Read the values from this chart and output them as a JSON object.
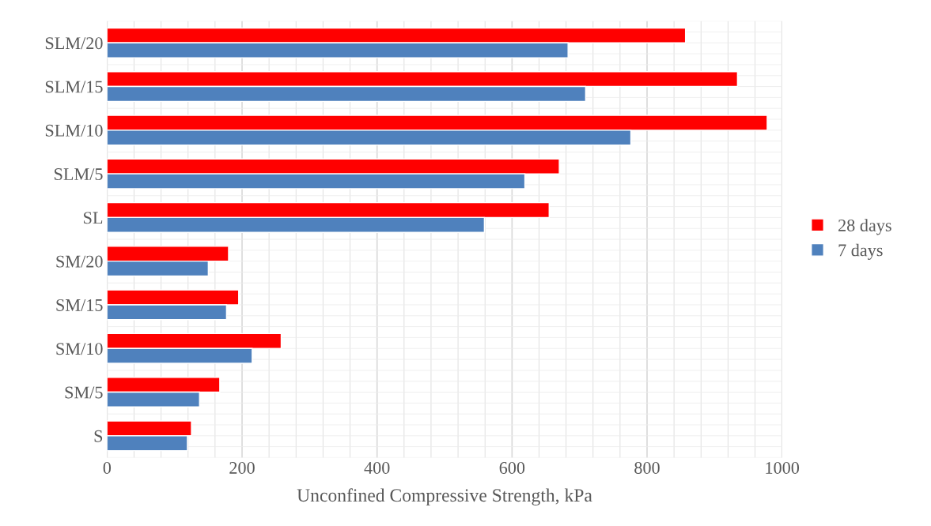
{
  "chart_data": {
    "type": "bar",
    "orientation": "horizontal",
    "xlabel": "Unconfined Compressive Strength, kPa",
    "categories": [
      "SLM/20",
      "SLM/15",
      "SLM/10",
      "SLM/5",
      "SL",
      "SM/20",
      "SM/15",
      "SM/10",
      "SM/5",
      "S"
    ],
    "series": [
      {
        "name": "28 days",
        "color": "#ff0000",
        "values": [
          857,
          934,
          978,
          670,
          655,
          180,
          195,
          258,
          167,
          125
        ]
      },
      {
        "name": "7 days",
        "color": "#4f81bd",
        "values": [
          683,
          709,
          776,
          619,
          559,
          150,
          177,
          215,
          137,
          119
        ]
      }
    ],
    "xlim": [
      0,
      1000
    ],
    "xticks": [
      0,
      200,
      400,
      600,
      800,
      1000
    ],
    "grid": true,
    "legend": "right"
  }
}
